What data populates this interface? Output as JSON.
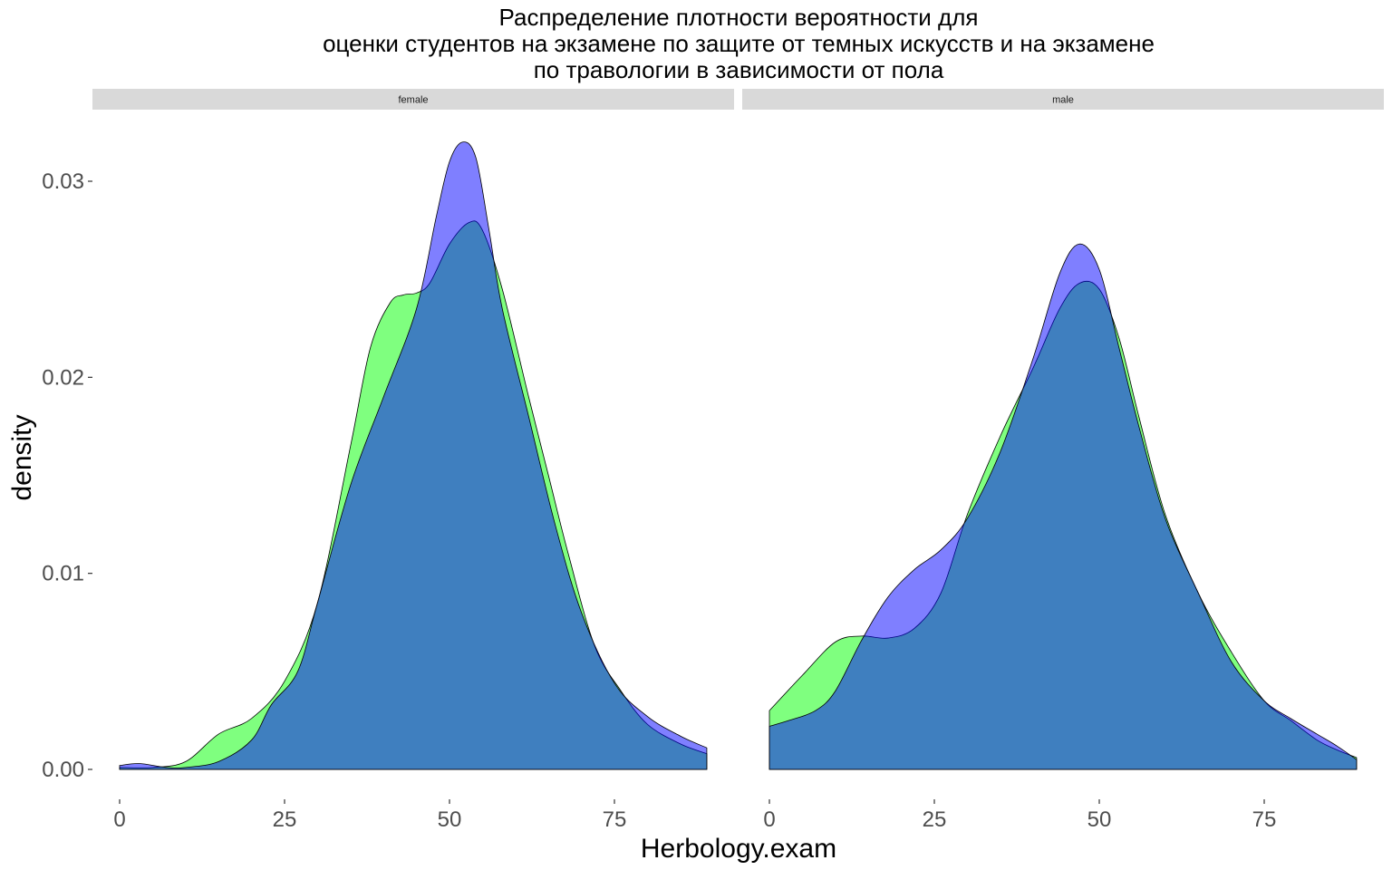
{
  "chart_data": {
    "type": "area",
    "title_lines": [
      "Распределение плотности вероятности для",
      "оценки студентов на экзамене по защите от темных искусств и на экзамене",
      "по травологии в зависимости от пола"
    ],
    "xlabel": "Herbology.exam",
    "ylabel": "density",
    "xlim": [
      0,
      89
    ],
    "ylim": [
      0,
      0.032
    ],
    "x_ticks": [
      0,
      25,
      50,
      75
    ],
    "x_tick_labels": [
      "0",
      "25",
      "50",
      "75"
    ],
    "y_ticks": [
      0,
      0.01,
      0.02,
      0.03
    ],
    "y_tick_labels": [
      "0.00",
      "0.01",
      "0.02",
      "0.03"
    ],
    "grid": false,
    "legend": "none",
    "colors": {
      "green": "#00ff00",
      "blue": "#0000ff",
      "overlap": "#3f7fbf",
      "strip_bg": "#d9d9d9"
    },
    "series_opacity": 0.5,
    "panels": [
      {
        "strip_label": "female",
        "series": [
          {
            "color": "green",
            "x": [
              0,
              5,
              10,
              15,
              20,
              25,
              30,
              35,
              38,
              41,
              43,
              45,
              47,
              50,
              53,
              55,
              58,
              62,
              65,
              68,
              72,
              76,
              80,
              85,
              89
            ],
            "y": [
              0.0001,
              0.0001,
              0.0004,
              0.0018,
              0.0026,
              0.0045,
              0.0085,
              0.0165,
              0.0215,
              0.0238,
              0.0242,
              0.0243,
              0.0248,
              0.0268,
              0.0279,
              0.0275,
              0.0245,
              0.019,
              0.015,
              0.011,
              0.0063,
              0.004,
              0.0023,
              0.0013,
              0.0008
            ]
          },
          {
            "color": "blue",
            "x": [
              0,
              3,
              7,
              10,
              15,
              20,
              23,
              27,
              30,
              35,
              40,
              45,
              48,
              50,
              52,
              54,
              56,
              58,
              62,
              66,
              70,
              75,
              80,
              85,
              89
            ],
            "y": [
              0.0002,
              0.0003,
              0.0001,
              0.0001,
              0.0004,
              0.0015,
              0.0033,
              0.005,
              0.0085,
              0.0145,
              0.019,
              0.0235,
              0.0282,
              0.031,
              0.032,
              0.0312,
              0.0275,
              0.0235,
              0.018,
              0.0125,
              0.008,
              0.0044,
              0.0027,
              0.0017,
              0.0011
            ]
          }
        ]
      },
      {
        "strip_label": "male",
        "series": [
          {
            "color": "green",
            "x": [
              0,
              5,
              10,
              14,
              18,
              22,
              26,
              30,
              35,
              40,
              44,
              47,
              50,
              53,
              56,
              60,
              65,
              70,
              75,
              79,
              83,
              86,
              89
            ],
            "y": [
              0.003,
              0.0048,
              0.0065,
              0.0068,
              0.0067,
              0.0072,
              0.009,
              0.013,
              0.017,
              0.0205,
              0.0235,
              0.0248,
              0.0245,
              0.022,
              0.018,
              0.013,
              0.009,
              0.006,
              0.0035,
              0.0025,
              0.0015,
              0.001,
              0.0006
            ]
          },
          {
            "color": "blue",
            "x": [
              0,
              3,
              7,
              10,
              14,
              18,
              22,
              26,
              30,
              35,
              40,
              44,
              47,
              50,
              53,
              56,
              60,
              65,
              70,
              75,
              79,
              83,
              86,
              89
            ],
            "y": [
              0.0022,
              0.0025,
              0.003,
              0.004,
              0.0066,
              0.0088,
              0.0102,
              0.0112,
              0.0128,
              0.0162,
              0.021,
              0.0253,
              0.0268,
              0.0255,
              0.0215,
              0.0175,
              0.0128,
              0.009,
              0.0055,
              0.0035,
              0.0026,
              0.0018,
              0.0012,
              0.0005
            ]
          }
        ]
      }
    ]
  }
}
